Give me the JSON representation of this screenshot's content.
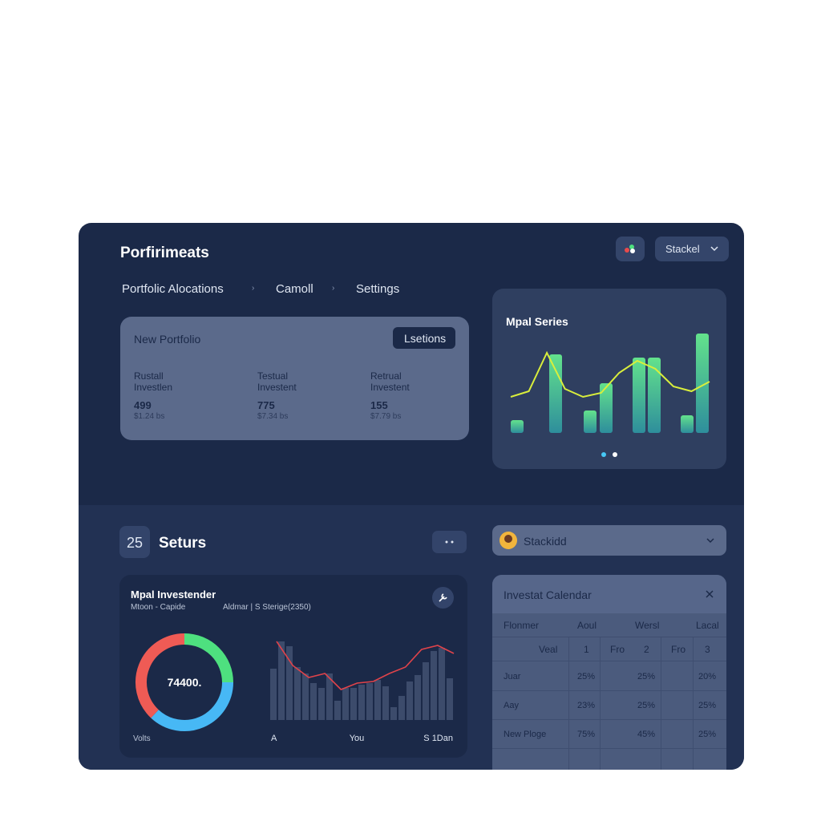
{
  "header": {
    "title": "Porfirimeats",
    "button": "Stackel"
  },
  "nav": [
    "Portfolic Alocations",
    "Camoll",
    "Settings"
  ],
  "portfolio": {
    "title": "New Portfolio",
    "button": "Lsetions",
    "stats": [
      {
        "label": [
          "Rustall",
          "Investlen"
        ],
        "value": 499,
        "sub": "$1.24 bs"
      },
      {
        "label": [
          "Testual",
          "Investent"
        ],
        "value": 775,
        "sub": "$7.34 bs"
      },
      {
        "label": [
          "Retrual",
          "Investent"
        ],
        "value": 155,
        "sub": "$7.79 bs"
      }
    ]
  },
  "series_chart": {
    "title": "Mpal Series",
    "bars": [
      16,
      98,
      28,
      62,
      94,
      94,
      22,
      124
    ],
    "line": [
      45,
      52,
      100,
      55,
      45,
      50,
      75,
      90,
      80,
      58,
      52,
      64
    ],
    "bar_colors": [
      "#63e28c",
      "#2e8e9c"
    ],
    "line_color": "#d9ee3c"
  },
  "section": {
    "badge": "25",
    "title": "Seturs",
    "dropdown": "Stackidd"
  },
  "invest": {
    "title": "Mpal Investender",
    "legend": [
      "Mtoon - Capide",
      "Aldmar | S Sterige(2350)"
    ],
    "donut": {
      "center": "74400.",
      "values": [
        25,
        37,
        38
      ],
      "colors": [
        "#4ee07f",
        "#47b8f5",
        "#ef5b55"
      ]
    },
    "caption": "Volts",
    "bars": [
      64,
      98,
      92,
      66,
      58,
      46,
      40,
      58,
      24,
      40,
      40,
      44,
      46,
      50,
      42,
      16,
      30,
      48,
      56,
      72,
      86,
      90,
      52
    ],
    "bar_color": "#3c4b6b",
    "line": [
      98,
      68,
      53,
      58,
      38,
      46,
      48,
      58,
      66,
      88,
      93,
      83
    ],
    "line_color": "#e0434a",
    "x_labels": [
      "A",
      "You",
      "S 1Dan"
    ]
  },
  "calendar": {
    "title": "Investat Calendar",
    "columns": [
      "Flonmer",
      "Aoul",
      "Wersl",
      "Lacal"
    ],
    "subheader": [
      "Veal",
      "1",
      "Fro",
      "2",
      "Fro",
      "3"
    ],
    "rows": [
      [
        "Juar",
        "25%",
        "25%",
        "20%"
      ],
      [
        "Aay",
        "23%",
        "25%",
        "25%"
      ],
      [
        "New Ploge",
        "75%",
        "45%",
        "25%"
      ]
    ]
  }
}
